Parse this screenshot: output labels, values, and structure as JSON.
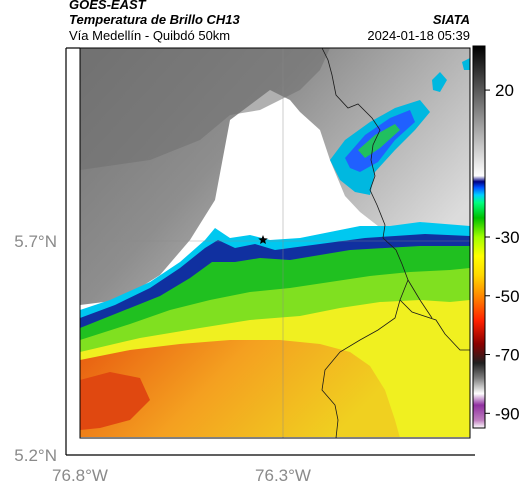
{
  "header": {
    "satellite": "GOES-EAST",
    "product": "Temperatura de Brillo CH13",
    "region": "Vía Medellín - Quibdó 50km",
    "brand": "SIATA",
    "datetime": "2024-01-18 05:39"
  },
  "map": {
    "x_ticks": [
      {
        "value": -76.8,
        "label": "76.8°W"
      },
      {
        "value": -76.3,
        "label": "76.3°W"
      }
    ],
    "y_ticks": [
      {
        "value": 5.7,
        "label": "5.7°N"
      },
      {
        "value": 5.2,
        "label": "5.2°N"
      }
    ],
    "marker": "star-marker",
    "border_color": "#1a1a1a"
  },
  "colorbar": {
    "ticks": [
      {
        "value": 20,
        "label": "20"
      },
      {
        "value": -30,
        "label": "-30"
      },
      {
        "value": -50,
        "label": "-50"
      },
      {
        "value": -70,
        "label": "-70"
      },
      {
        "value": -90,
        "label": "-90"
      }
    ],
    "range": [
      -95,
      35
    ]
  }
}
